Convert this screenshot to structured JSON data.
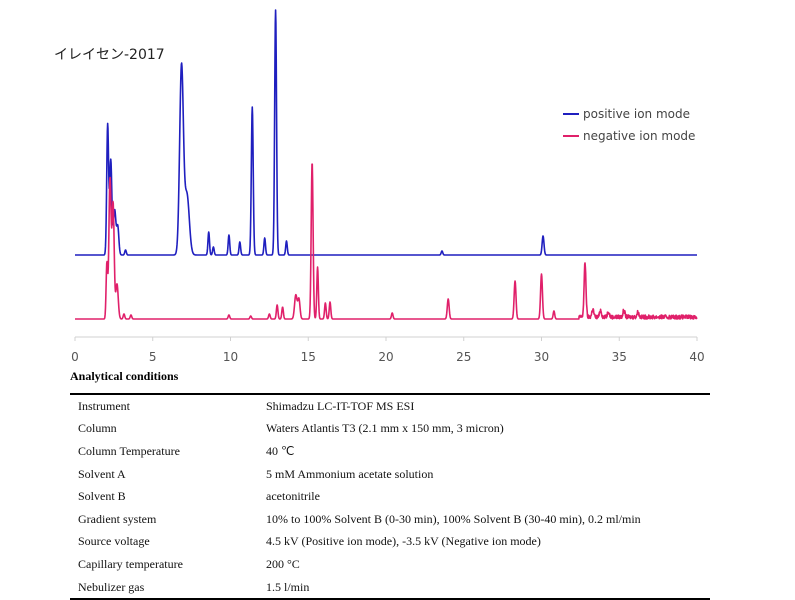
{
  "sample_title": "イレイセン-2017",
  "chart_data": {
    "type": "line",
    "title": "イレイセン-2017",
    "xlabel": "",
    "ylabel": "",
    "xlim": [
      0,
      40
    ],
    "x_ticks": [
      "0",
      "5",
      "10",
      "15",
      "20",
      "25",
      "30",
      "35",
      "40"
    ],
    "y_axis_visible": false,
    "grid": false,
    "legend_position": "top-right",
    "series": [
      {
        "name": "positive ion mode",
        "color": "#1f1fbf",
        "baseline": 0,
        "peaks": [
          {
            "rt": 2.1,
            "height": 130,
            "width": 0.06
          },
          {
            "rt": 2.3,
            "height": 95,
            "width": 0.07
          },
          {
            "rt": 2.55,
            "height": 45,
            "width": 0.08
          },
          {
            "rt": 2.75,
            "height": 28,
            "width": 0.07
          },
          {
            "rt": 3.25,
            "height": 5,
            "width": 0.05
          },
          {
            "rt": 6.85,
            "height": 188,
            "width": 0.12
          },
          {
            "rt": 7.2,
            "height": 60,
            "width": 0.15
          },
          {
            "rt": 8.6,
            "height": 23,
            "width": 0.05
          },
          {
            "rt": 8.9,
            "height": 8,
            "width": 0.05
          },
          {
            "rt": 9.9,
            "height": 20,
            "width": 0.05
          },
          {
            "rt": 10.6,
            "height": 13,
            "width": 0.05
          },
          {
            "rt": 11.4,
            "height": 148,
            "width": 0.06
          },
          {
            "rt": 12.2,
            "height": 17,
            "width": 0.05
          },
          {
            "rt": 12.9,
            "height": 245,
            "width": 0.06
          },
          {
            "rt": 13.6,
            "height": 14,
            "width": 0.05
          },
          {
            "rt": 23.6,
            "height": 4,
            "width": 0.05
          },
          {
            "rt": 30.1,
            "height": 19,
            "width": 0.06
          }
        ]
      },
      {
        "name": "negative ion mode",
        "color": "#e0206a",
        "baseline": 0,
        "peaks": [
          {
            "rt": 2.05,
            "height": 55,
            "width": 0.05
          },
          {
            "rt": 2.25,
            "height": 140,
            "width": 0.07
          },
          {
            "rt": 2.45,
            "height": 115,
            "width": 0.07
          },
          {
            "rt": 2.7,
            "height": 35,
            "width": 0.08
          },
          {
            "rt": 3.15,
            "height": 5,
            "width": 0.05
          },
          {
            "rt": 3.6,
            "height": 4,
            "width": 0.05
          },
          {
            "rt": 9.9,
            "height": 4,
            "width": 0.05
          },
          {
            "rt": 11.3,
            "height": 3,
            "width": 0.05
          },
          {
            "rt": 12.5,
            "height": 5,
            "width": 0.05
          },
          {
            "rt": 13.0,
            "height": 14,
            "width": 0.05
          },
          {
            "rt": 13.35,
            "height": 12,
            "width": 0.05
          },
          {
            "rt": 14.2,
            "height": 24,
            "width": 0.08
          },
          {
            "rt": 14.4,
            "height": 20,
            "width": 0.07
          },
          {
            "rt": 15.25,
            "height": 157,
            "width": 0.06
          },
          {
            "rt": 15.6,
            "height": 52,
            "width": 0.05
          },
          {
            "rt": 16.1,
            "height": 16,
            "width": 0.05
          },
          {
            "rt": 16.4,
            "height": 17,
            "width": 0.05
          },
          {
            "rt": 20.4,
            "height": 6,
            "width": 0.05
          },
          {
            "rt": 24.0,
            "height": 20,
            "width": 0.06
          },
          {
            "rt": 28.3,
            "height": 38,
            "width": 0.06
          },
          {
            "rt": 30.0,
            "height": 45,
            "width": 0.06
          },
          {
            "rt": 30.8,
            "height": 8,
            "width": 0.05
          },
          {
            "rt": 32.8,
            "height": 54,
            "width": 0.06
          },
          {
            "rt": 33.3,
            "height": 8,
            "width": 0.06
          },
          {
            "rt": 33.8,
            "height": 7,
            "width": 0.06
          },
          {
            "rt": 34.3,
            "height": 6,
            "width": 0.06
          },
          {
            "rt": 35.3,
            "height": 7,
            "width": 0.06
          },
          {
            "rt": 36.2,
            "height": 5,
            "width": 0.06
          }
        ],
        "noise": {
          "from": 32.4,
          "to": 40,
          "amplitude": 4
        }
      }
    ]
  },
  "conditions": {
    "title": "Analytical conditions",
    "rows": [
      {
        "key": "Instrument",
        "value": "Shimadzu LC-IT-TOF MS ESI"
      },
      {
        "key": "Column",
        "value": "Waters Atlantis T3 (2.1 mm x 150 mm, 3 micron)"
      },
      {
        "key": "Column Temperature",
        "value": "40 ℃"
      },
      {
        "key": "Solvent A",
        "value": "5 mM Ammonium acetate solution"
      },
      {
        "key": "Solvent B",
        "value": "acetonitrile"
      },
      {
        "key": "Gradient system",
        "value": "10% to 100% Solvent B (0-30 min), 100% Solvent B (30-40 min), 0.2 ml/min"
      },
      {
        "key": "Source voltage",
        "value": "4.5 kV (Positive ion mode), -3.5 kV (Negative ion mode)"
      },
      {
        "key": "Capillary temperature",
        "value": "200 °C"
      },
      {
        "key": "Nebulizer gas",
        "value": "1.5 l/min"
      }
    ]
  }
}
